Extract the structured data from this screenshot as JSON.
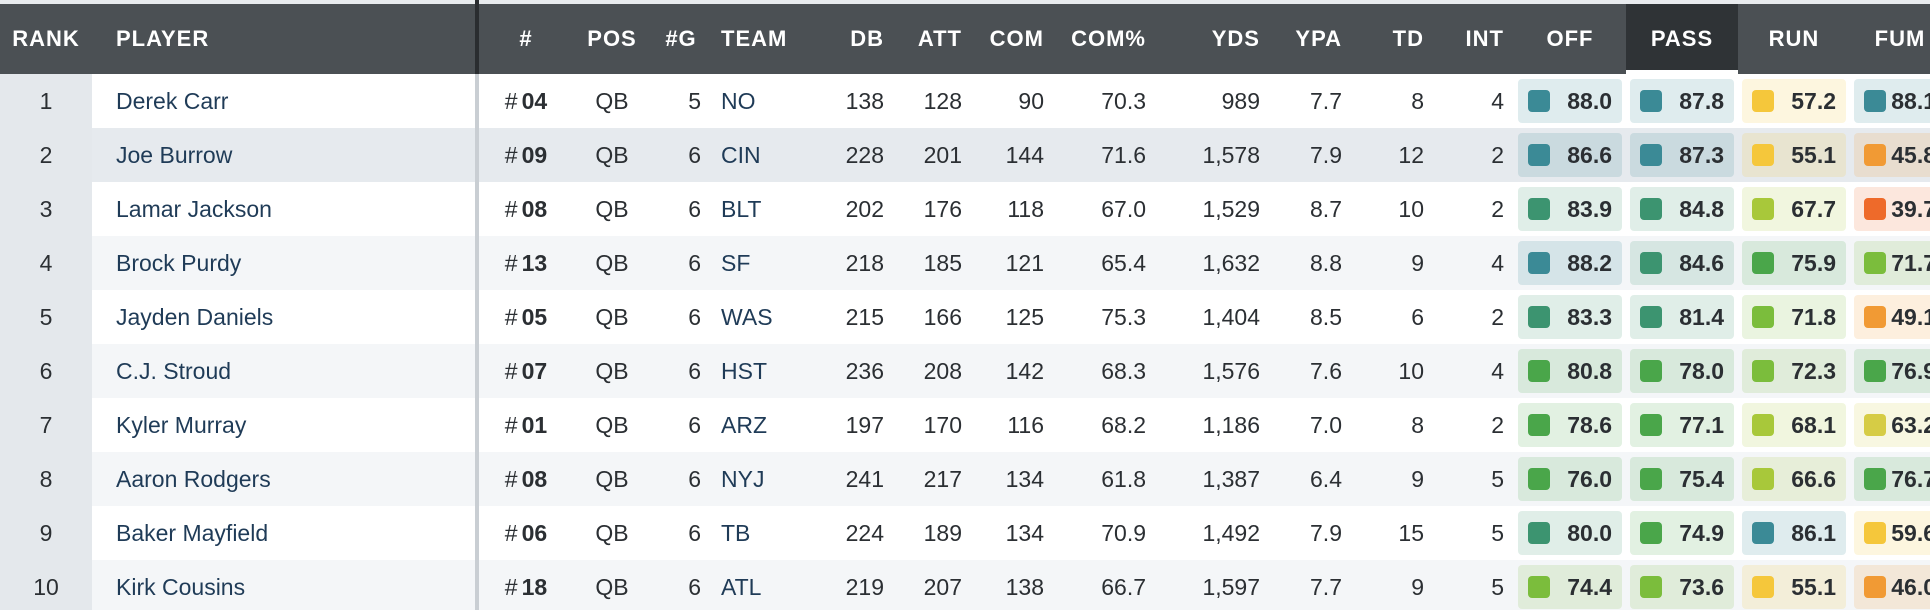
{
  "columns": [
    {
      "key": "rank",
      "label": "RANK"
    },
    {
      "key": "player",
      "label": "PLAYER"
    },
    {
      "key": "jersey",
      "label": "#"
    },
    {
      "key": "pos",
      "label": "POS"
    },
    {
      "key": "games",
      "label": "#G"
    },
    {
      "key": "team",
      "label": "TEAM"
    },
    {
      "key": "db",
      "label": "DB"
    },
    {
      "key": "att",
      "label": "ATT"
    },
    {
      "key": "com",
      "label": "COM"
    },
    {
      "key": "comp_pct",
      "label": "COM%"
    },
    {
      "key": "yds",
      "label": "YDS"
    },
    {
      "key": "ypa",
      "label": "YPA"
    },
    {
      "key": "td",
      "label": "TD"
    },
    {
      "key": "int",
      "label": "INT"
    },
    {
      "key": "off",
      "label": "OFF"
    },
    {
      "key": "pass",
      "label": "PASS"
    },
    {
      "key": "run",
      "label": "RUN"
    },
    {
      "key": "fum",
      "label": "FUM"
    }
  ],
  "sorted_column": "PASS",
  "jersey_prefix": "#",
  "grade_colors": {
    "elite": "#3b8a96",
    "high": "#3c9470",
    "good": "#4aa64a",
    "above_avg": "#7bbd3c",
    "avg": "#a8c83a",
    "below_avg_high": "#d6cc45",
    "below_avg": "#f5c73b",
    "poor": "#f19a34",
    "bad": "#ee6a2a"
  },
  "rows": [
    {
      "rank": "1",
      "player": "Derek Carr",
      "jersey": "04",
      "pos": "QB",
      "games": "5",
      "team": "NO",
      "db": "138",
      "att": "128",
      "com": "90",
      "comp_pct": "70.3",
      "yds": "989",
      "ypa": "7.7",
      "td": "8",
      "int": "4",
      "off": "88.0",
      "pass": "87.8",
      "run": "57.2",
      "fum": "88.1",
      "off_c": "elite",
      "pass_c": "elite",
      "run_c": "below_avg",
      "fum_c": "elite"
    },
    {
      "rank": "2",
      "player": "Joe Burrow",
      "jersey": "09",
      "pos": "QB",
      "games": "6",
      "team": "CIN",
      "db": "228",
      "att": "201",
      "com": "144",
      "comp_pct": "71.6",
      "yds": "1,578",
      "ypa": "7.9",
      "td": "12",
      "int": "2",
      "off": "86.6",
      "pass": "87.3",
      "run": "55.1",
      "fum": "45.8",
      "off_c": "elite",
      "pass_c": "elite",
      "run_c": "below_avg",
      "fum_c": "poor"
    },
    {
      "rank": "3",
      "player": "Lamar Jackson",
      "jersey": "08",
      "pos": "QB",
      "games": "6",
      "team": "BLT",
      "db": "202",
      "att": "176",
      "com": "118",
      "comp_pct": "67.0",
      "yds": "1,529",
      "ypa": "8.7",
      "td": "10",
      "int": "2",
      "off": "83.9",
      "pass": "84.8",
      "run": "67.7",
      "fum": "39.7",
      "off_c": "high",
      "pass_c": "high",
      "run_c": "avg",
      "fum_c": "bad"
    },
    {
      "rank": "4",
      "player": "Brock Purdy",
      "jersey": "13",
      "pos": "QB",
      "games": "6",
      "team": "SF",
      "db": "218",
      "att": "185",
      "com": "121",
      "comp_pct": "65.4",
      "yds": "1,632",
      "ypa": "8.8",
      "td": "9",
      "int": "4",
      "off": "88.2",
      "pass": "84.6",
      "run": "75.9",
      "fum": "71.7",
      "off_c": "elite",
      "pass_c": "high",
      "run_c": "good",
      "fum_c": "above_avg"
    },
    {
      "rank": "5",
      "player": "Jayden Daniels",
      "jersey": "05",
      "pos": "QB",
      "games": "6",
      "team": "WAS",
      "db": "215",
      "att": "166",
      "com": "125",
      "comp_pct": "75.3",
      "yds": "1,404",
      "ypa": "8.5",
      "td": "6",
      "int": "2",
      "off": "83.3",
      "pass": "81.4",
      "run": "71.8",
      "fum": "49.1",
      "off_c": "high",
      "pass_c": "high",
      "run_c": "above_avg",
      "fum_c": "poor"
    },
    {
      "rank": "6",
      "player": "C.J. Stroud",
      "jersey": "07",
      "pos": "QB",
      "games": "6",
      "team": "HST",
      "db": "236",
      "att": "208",
      "com": "142",
      "comp_pct": "68.3",
      "yds": "1,576",
      "ypa": "7.6",
      "td": "10",
      "int": "4",
      "off": "80.8",
      "pass": "78.0",
      "run": "72.3",
      "fum": "76.9",
      "off_c": "good",
      "pass_c": "good",
      "run_c": "above_avg",
      "fum_c": "good"
    },
    {
      "rank": "7",
      "player": "Kyler Murray",
      "jersey": "01",
      "pos": "QB",
      "games": "6",
      "team": "ARZ",
      "db": "197",
      "att": "170",
      "com": "116",
      "comp_pct": "68.2",
      "yds": "1,186",
      "ypa": "7.0",
      "td": "8",
      "int": "2",
      "off": "78.6",
      "pass": "77.1",
      "run": "68.1",
      "fum": "63.2",
      "off_c": "good",
      "pass_c": "good",
      "run_c": "avg",
      "fum_c": "below_avg_high"
    },
    {
      "rank": "8",
      "player": "Aaron Rodgers",
      "jersey": "08",
      "pos": "QB",
      "games": "6",
      "team": "NYJ",
      "db": "241",
      "att": "217",
      "com": "134",
      "comp_pct": "61.8",
      "yds": "1,387",
      "ypa": "6.4",
      "td": "9",
      "int": "5",
      "off": "76.0",
      "pass": "75.4",
      "run": "66.6",
      "fum": "76.7",
      "off_c": "good",
      "pass_c": "good",
      "run_c": "avg",
      "fum_c": "good"
    },
    {
      "rank": "9",
      "player": "Baker Mayfield",
      "jersey": "06",
      "pos": "QB",
      "games": "6",
      "team": "TB",
      "db": "224",
      "att": "189",
      "com": "134",
      "comp_pct": "70.9",
      "yds": "1,492",
      "ypa": "7.9",
      "td": "15",
      "int": "5",
      "off": "80.0",
      "pass": "74.9",
      "run": "86.1",
      "fum": "59.6",
      "off_c": "high",
      "pass_c": "good",
      "run_c": "elite",
      "fum_c": "below_avg"
    },
    {
      "rank": "10",
      "player": "Kirk Cousins",
      "jersey": "18",
      "pos": "QB",
      "games": "6",
      "team": "ATL",
      "db": "219",
      "att": "207",
      "com": "138",
      "comp_pct": "66.7",
      "yds": "1,597",
      "ypa": "7.7",
      "td": "9",
      "int": "5",
      "off": "74.4",
      "pass": "73.6",
      "run": "55.1",
      "fum": "46.0",
      "off_c": "above_avg",
      "pass_c": "above_avg",
      "run_c": "below_avg",
      "fum_c": "poor"
    }
  ]
}
